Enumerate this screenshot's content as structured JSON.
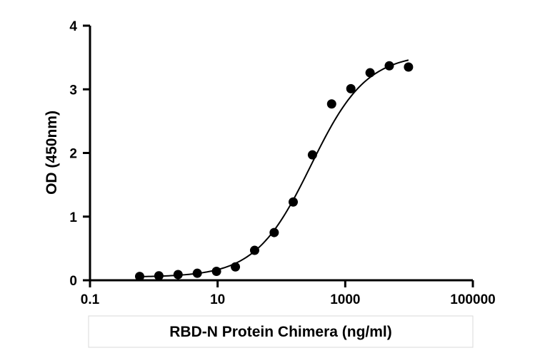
{
  "chart_data": {
    "type": "scatter",
    "title": "",
    "xlabel": "RBD-N Protein Chimera (ng/ml)",
    "ylabel": "OD (450nm)",
    "x_scale": "log",
    "xlim": [
      0.1,
      100000
    ],
    "ylim": [
      0,
      4
    ],
    "x_ticks": [
      {
        "value": 0.1,
        "label": "0.1"
      },
      {
        "value": 10,
        "label": "10"
      },
      {
        "value": 1000,
        "label": "1000"
      },
      {
        "value": 100000,
        "label": "100000"
      }
    ],
    "y_ticks": [
      {
        "value": 0,
        "label": "0"
      },
      {
        "value": 1,
        "label": "1"
      },
      {
        "value": 2,
        "label": "2"
      },
      {
        "value": 3,
        "label": "3"
      },
      {
        "value": 4,
        "label": "4"
      }
    ],
    "grid": false,
    "legend": "none",
    "marker_color": "#000000",
    "series": [
      {
        "name": "",
        "x": [
          0.6,
          1.2,
          2.4,
          4.8,
          9.6,
          19,
          38,
          77,
          153,
          306,
          612,
          1225,
          2450,
          4900,
          9800
        ],
        "y": [
          0.06,
          0.07,
          0.09,
          0.11,
          0.14,
          0.21,
          0.47,
          0.75,
          1.23,
          1.97,
          2.77,
          3.01,
          3.26,
          3.37,
          3.35
        ]
      }
    ],
    "fit": {
      "type": "4PL",
      "bottom": 0.05,
      "top": 3.56,
      "ec50": 290,
      "hill": 1.0
    }
  }
}
